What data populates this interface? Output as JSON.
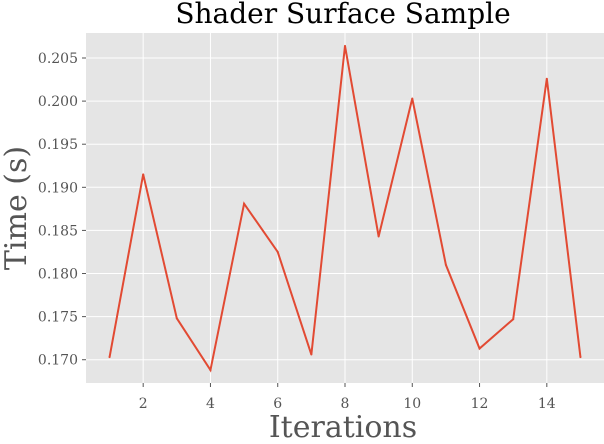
{
  "chart_data": {
    "type": "line",
    "title": "Shader Surface Sample",
    "xlabel": "Iterations",
    "ylabel": "Time (s)",
    "x": [
      1,
      2,
      3,
      4,
      5,
      6,
      7,
      8,
      9,
      10,
      11,
      12,
      13,
      14,
      15
    ],
    "series": [
      {
        "values": [
          0.1703,
          0.1915,
          0.1748,
          0.1688,
          0.1881,
          0.1825,
          0.1706,
          0.2064,
          0.1843,
          0.2003,
          0.181,
          0.1713,
          0.1747,
          0.2026,
          0.1703
        ],
        "color": "#e24a33"
      }
    ],
    "xlim": [
      0.3,
      15.7
    ],
    "ylim": [
      0.1673,
      0.2079
    ],
    "xticks": [
      2,
      4,
      6,
      8,
      10,
      12,
      14
    ],
    "yticks": [
      0.17,
      0.175,
      0.18,
      0.185,
      0.19,
      0.195,
      0.2,
      0.205
    ],
    "ytick_labels": [
      "0.170",
      "0.175",
      "0.180",
      "0.185",
      "0.190",
      "0.195",
      "0.200",
      "0.205"
    ],
    "grid": true,
    "legend": "none",
    "style": {
      "plot_background": "#e5e5e5",
      "grid_color": "#ffffff",
      "text_color": "#555555"
    }
  }
}
